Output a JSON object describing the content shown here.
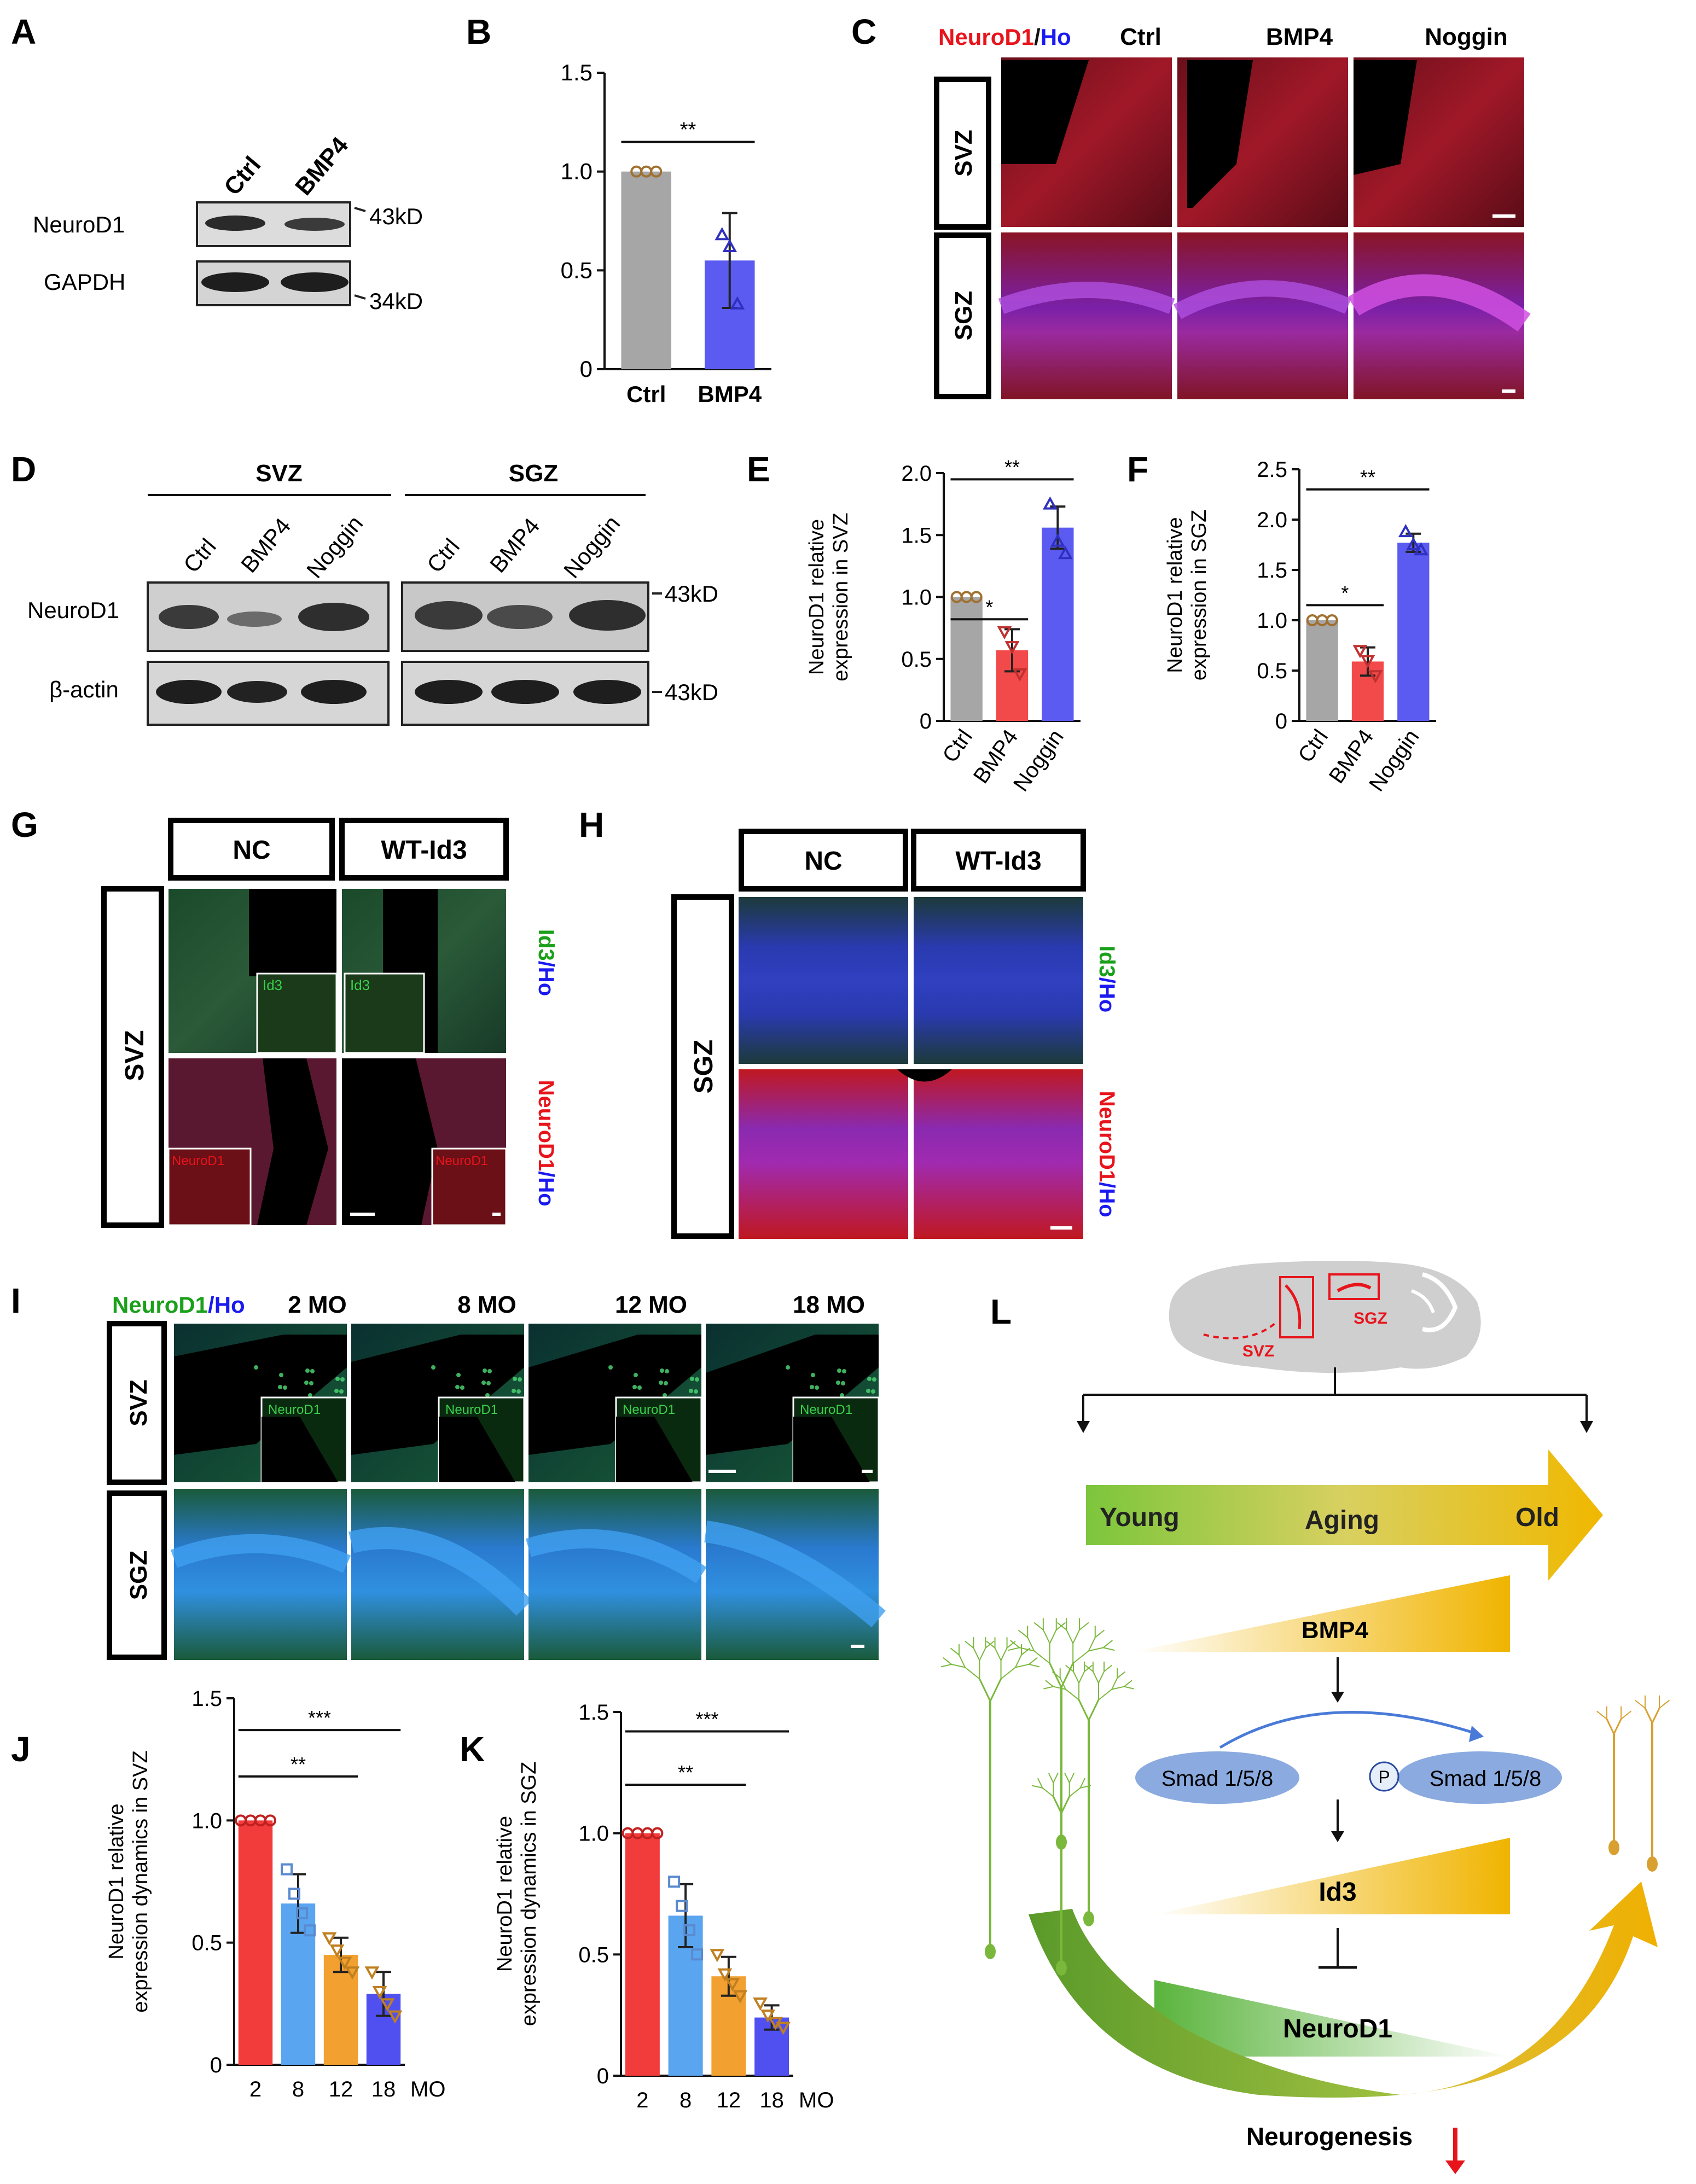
{
  "panels": {
    "A": {
      "letter": "A",
      "lanes": [
        "Ctrl",
        "BMP4"
      ],
      "bands": [
        "NeuroD1",
        "GAPDH"
      ],
      "markers": [
        "43kD",
        "34kD"
      ]
    },
    "B": {
      "letter": "B",
      "sig": "**",
      "chart_data": {
        "type": "bar",
        "categories": [
          "Ctrl",
          "BMP4"
        ],
        "values": [
          1.0,
          0.55
        ],
        "errors": [
          0,
          0.24
        ],
        "points": [
          [
            1.0,
            1.0,
            1.0
          ],
          [
            0.68,
            0.62,
            0.33
          ]
        ],
        "ylim": [
          0,
          1.5
        ],
        "yticks": [
          "0",
          "0.5",
          "1.0",
          "1.5"
        ],
        "ylabel": "",
        "colors": [
          "#a6a6a6",
          "#5b5bf2"
        ]
      }
    },
    "C": {
      "letter": "C",
      "title_red": "NeuroD1",
      "title_sep": "/",
      "title_blue": "Ho",
      "cols": [
        "Ctrl",
        "BMP4",
        "Noggin"
      ],
      "rows": [
        "SVZ",
        "SGZ"
      ]
    },
    "D": {
      "letter": "D",
      "groups": [
        "SVZ",
        "SGZ"
      ],
      "lanes": [
        "Ctrl",
        "BMP4",
        "Noggin",
        "Ctrl",
        "BMP4",
        "Noggin"
      ],
      "bands": [
        "NeuroD1",
        "β-actin"
      ],
      "markers": [
        "43kD",
        "43kD"
      ]
    },
    "E": {
      "letter": "E",
      "sig1": "*",
      "sig2": "**",
      "chart_data": {
        "type": "bar",
        "categories": [
          "Ctrl",
          "BMP4",
          "Noggin"
        ],
        "values": [
          1.0,
          0.57,
          1.56
        ],
        "errors": [
          0,
          0.17,
          0.17
        ],
        "points": [
          [
            1.0,
            1.0,
            1.0
          ],
          [
            0.72,
            0.6,
            0.38
          ],
          [
            1.75,
            1.45,
            1.35
          ]
        ],
        "ylim": [
          0,
          2.0
        ],
        "yticks": [
          "0",
          "0.5",
          "1.0",
          "1.5",
          "2.0"
        ],
        "ylabel_line1": "NeuroD1 relative",
        "ylabel_line2": "expression in SVZ",
        "colors": [
          "#a6a6a6",
          "#f24a4a",
          "#5b5bf2"
        ]
      }
    },
    "F": {
      "letter": "F",
      "sig1": "*",
      "sig2": "**",
      "chart_data": {
        "type": "bar",
        "categories": [
          "Ctrl",
          "BMP4",
          "Noggin"
        ],
        "values": [
          1.0,
          0.59,
          1.77
        ],
        "errors": [
          0,
          0.14,
          0.09
        ],
        "points": [
          [
            1.0,
            1.0,
            1.0
          ],
          [
            0.7,
            0.6,
            0.45
          ],
          [
            1.88,
            1.75,
            1.7
          ]
        ],
        "ylim": [
          0,
          2.5
        ],
        "yticks": [
          "0",
          "0.5",
          "1.0",
          "1.5",
          "2.0",
          "2.5"
        ],
        "ylabel_line1": "NeuroD1 relative",
        "ylabel_line2": "expression in SGZ",
        "colors": [
          "#a6a6a6",
          "#f24a4a",
          "#5b5bf2"
        ]
      }
    },
    "G": {
      "letter": "G",
      "cols": [
        "NC",
        "WT-Id3"
      ],
      "row": "SVZ",
      "inset_top": "Id3",
      "inset_bottom": "NeuroD1",
      "side_top_green": "Id3",
      "side_top_blue": "/Ho",
      "side_bottom_red": "NeuroD1",
      "side_bottom_blue": "/Ho"
    },
    "H": {
      "letter": "H",
      "cols": [
        "NC",
        "WT-Id3"
      ],
      "row": "SGZ",
      "side_top_green": "Id3",
      "side_top_blue": "/Ho",
      "side_bottom_red": "NeuroD1",
      "side_bottom_blue": "/Ho"
    },
    "I": {
      "letter": "I",
      "title_green": "NeuroD1",
      "title_blue": "/Ho",
      "cols": [
        "2 MO",
        "8 MO",
        "12 MO",
        "18 MO"
      ],
      "rows": [
        "SVZ",
        "SGZ"
      ],
      "inset": "NeuroD1"
    },
    "J": {
      "letter": "J",
      "sig1": "**",
      "sig2": "***",
      "unit": "MO",
      "chart_data": {
        "type": "bar",
        "categories": [
          "2",
          "8",
          "12",
          "18"
        ],
        "values": [
          1.0,
          0.66,
          0.45,
          0.29
        ],
        "errors": [
          0,
          0.12,
          0.07,
          0.09
        ],
        "points": [
          [
            1.0,
            1.0,
            1.0,
            1.0
          ],
          [
            0.8,
            0.7,
            0.62,
            0.55
          ],
          [
            0.52,
            0.47,
            0.42,
            0.38
          ],
          [
            0.38,
            0.3,
            0.25,
            0.2
          ]
        ],
        "ylim": [
          0,
          1.5
        ],
        "yticks": [
          "0",
          "0.5",
          "1.0",
          "1.5"
        ],
        "ylabel_line1": "NeuroD1 relative",
        "ylabel_line2": "expression dynamics in SVZ",
        "colors": [
          "#f23c3c",
          "#5aa5f0",
          "#f2a030",
          "#5050f0"
        ]
      }
    },
    "K": {
      "letter": "K",
      "sig1": "**",
      "sig2": "***",
      "unit": "MO",
      "chart_data": {
        "type": "bar",
        "categories": [
          "2",
          "8",
          "12",
          "18"
        ],
        "values": [
          1.0,
          0.66,
          0.41,
          0.24
        ],
        "errors": [
          0,
          0.13,
          0.08,
          0.05
        ],
        "points": [
          [
            1.0,
            1.0,
            1.0,
            1.0
          ],
          [
            0.8,
            0.7,
            0.6,
            0.5
          ],
          [
            0.5,
            0.42,
            0.38,
            0.33
          ],
          [
            0.3,
            0.25,
            0.22,
            0.2
          ]
        ],
        "ylim": [
          0,
          1.5
        ],
        "yticks": [
          "0",
          "0.5",
          "1.0",
          "1.5"
        ],
        "ylabel_line1": "NeuroD1 relative",
        "ylabel_line2": "expression dynamics in SGZ",
        "colors": [
          "#f23c3c",
          "#5aa5f0",
          "#f2a030",
          "#5050f0"
        ]
      }
    },
    "L": {
      "letter": "L",
      "brain_svz": "SVZ",
      "brain_sgz": "SGZ",
      "arrow_young": "Young",
      "arrow_aging": "Aging",
      "arrow_old": "Old",
      "bmp4": "BMP4",
      "smad": "Smad 1/5/8",
      "psmad": "Smad 1/5/8",
      "p_badge": "P",
      "id3": "Id3",
      "neurod1": "NeuroD1",
      "neurogenesis": "Neurogenesis"
    }
  },
  "colors": {
    "red": "#e8141c",
    "blue": "#1a1af0",
    "green": "#1aa01a",
    "micro_red": "#7a1018",
    "micro_blue": "#2a2aa8",
    "micro_green": "#2a7a2a"
  }
}
